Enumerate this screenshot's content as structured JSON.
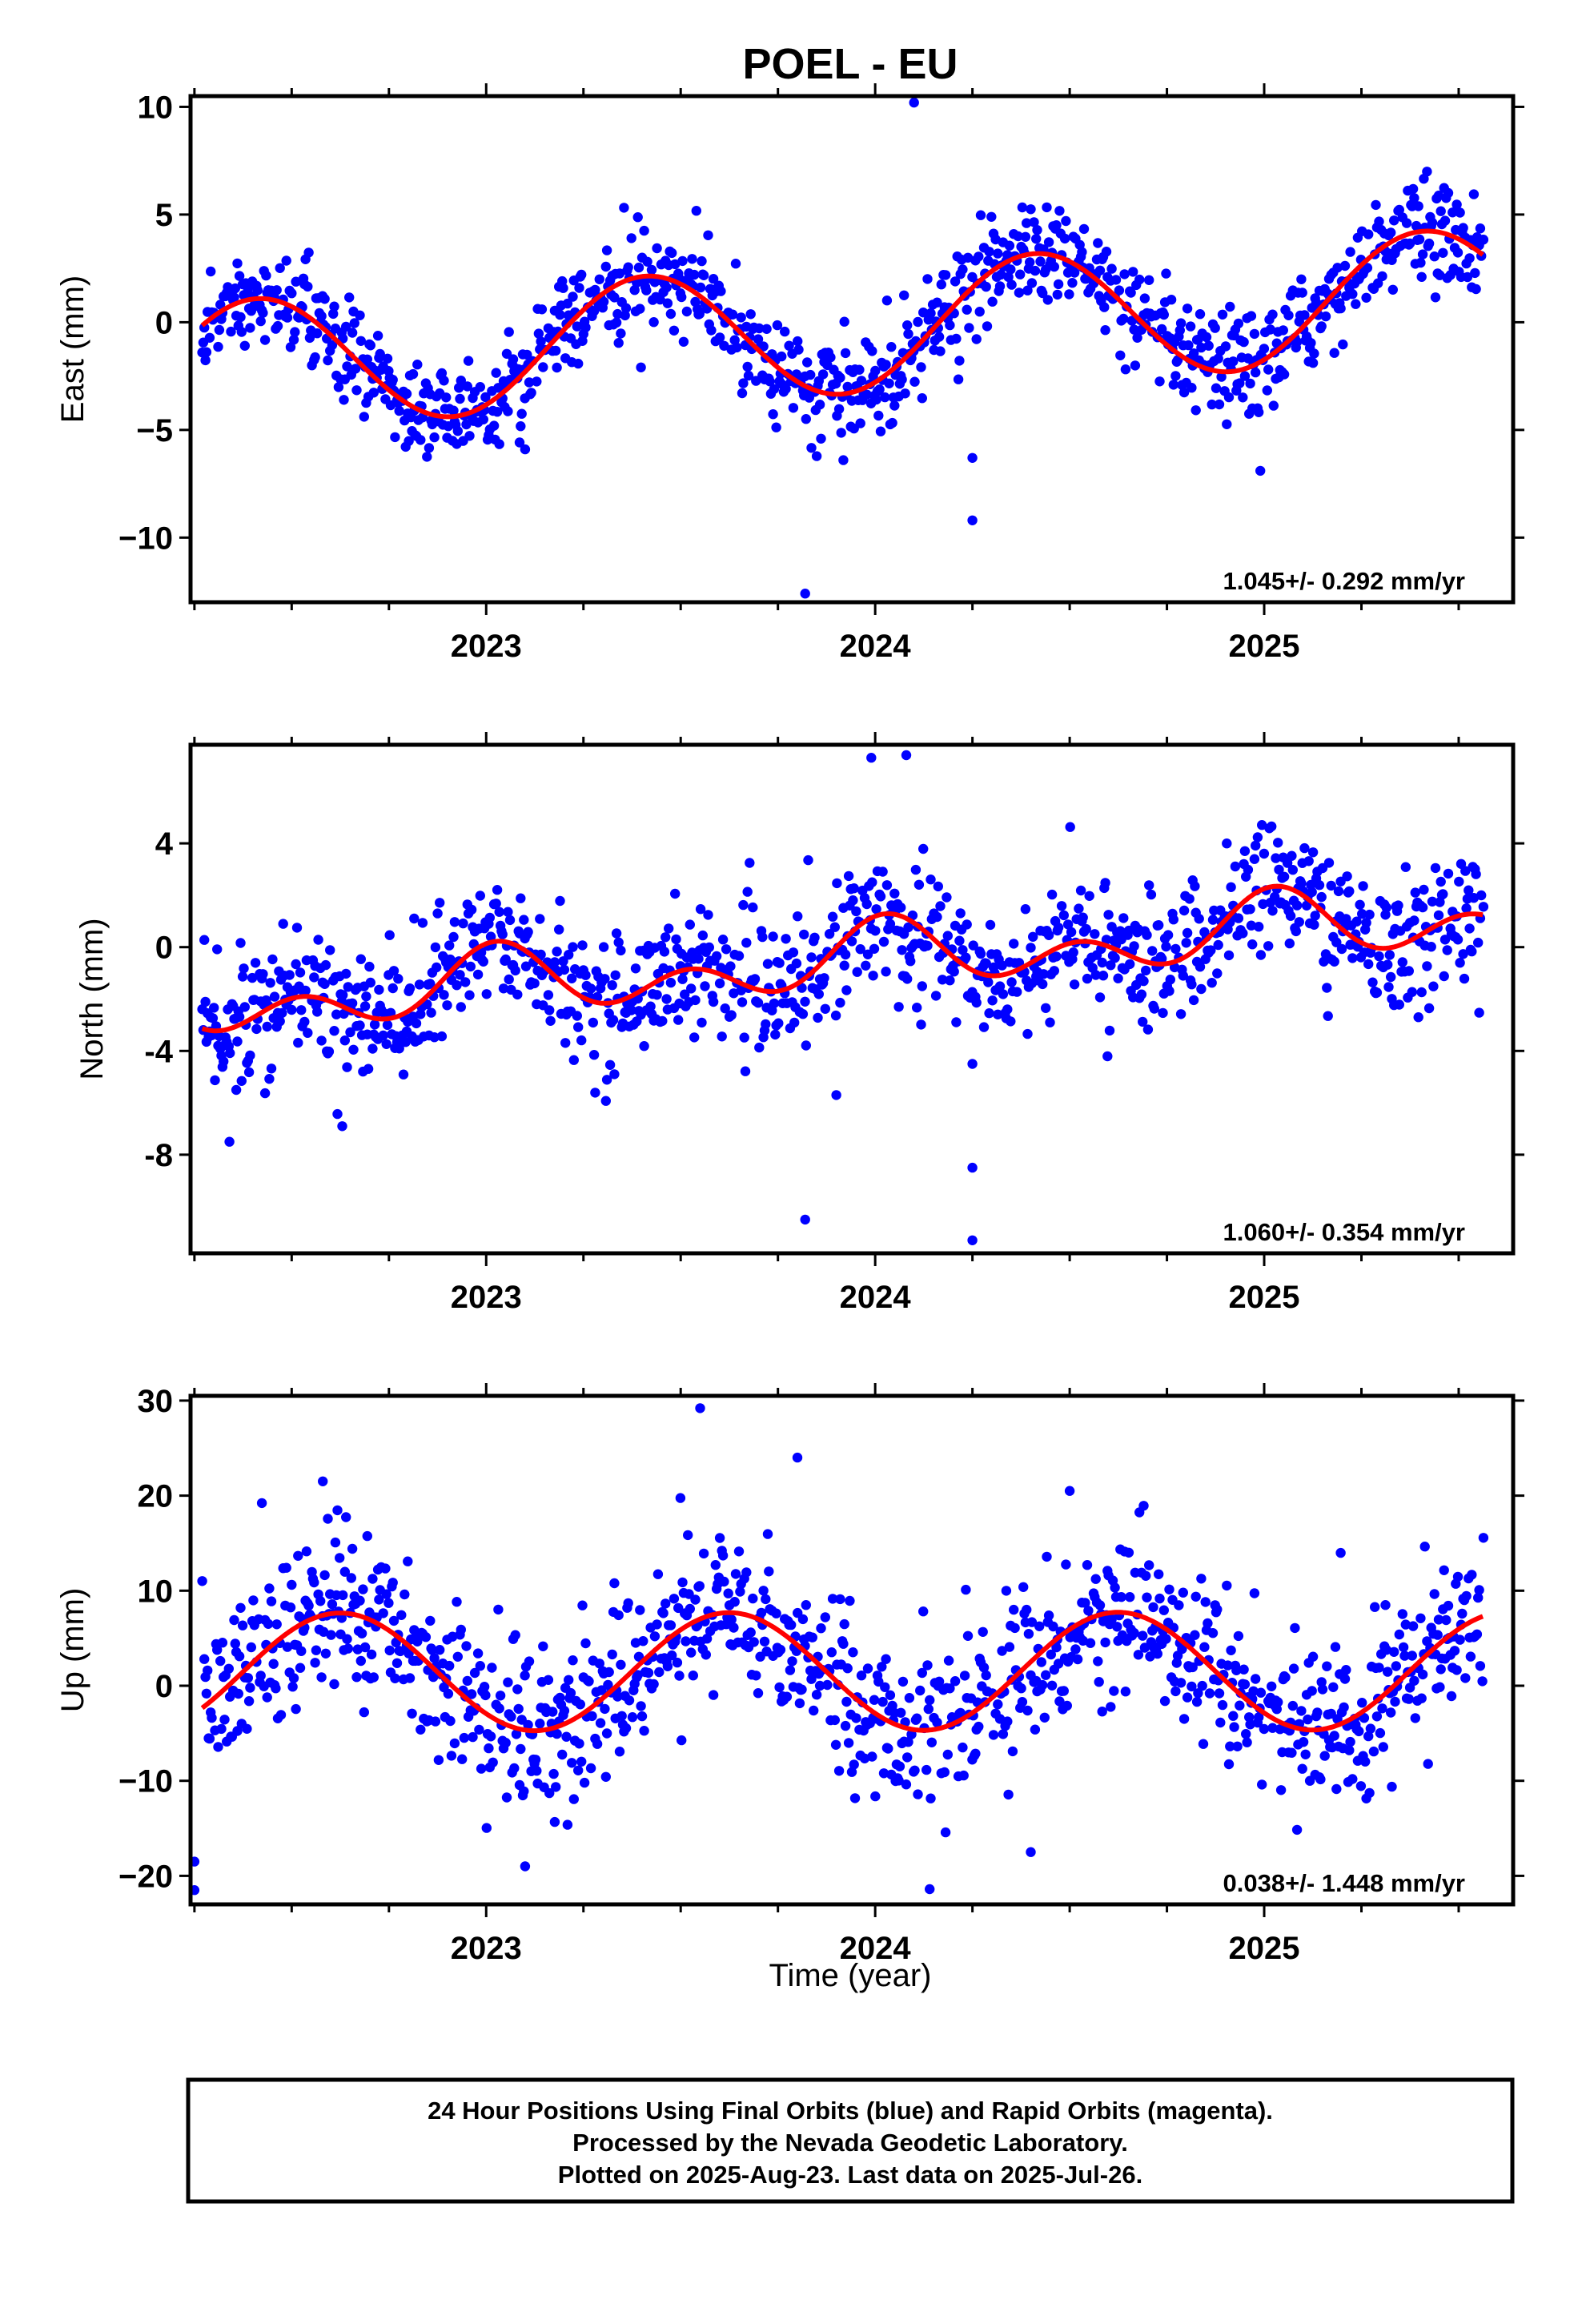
{
  "title": "POEL - EU",
  "colors": {
    "final_orbits": "#0000ff",
    "rapid_orbits": "#ff00ff",
    "model_fit": "#ff0000",
    "frame": "#000000"
  },
  "chart_data": [
    {
      "type": "scatter",
      "panel": "east",
      "ylabel": "East (mm)",
      "xlabel": "",
      "xlim": [
        2022.24,
        2025.64
      ],
      "ylim": [
        -13,
        10.5
      ],
      "yticks": [
        10,
        5,
        0,
        -5,
        -10
      ],
      "yticklabels": [
        "10",
        "5",
        "0",
        "−5",
        "−10"
      ],
      "xticks": [
        2023,
        2024,
        2025
      ],
      "xticklabels": [
        "2023",
        "2024",
        "2025"
      ],
      "annotation": "1.045+/- 0.292 mm/yr",
      "model": {
        "offset": -0.35,
        "rate": 1.045,
        "annual_amp": 3.0,
        "annual_phase_day": 150,
        "semi_amp": 0.0,
        "semi_phase_day": 0
      },
      "noise_sd": 1.15,
      "outliers": [
        [
          2023.1,
          -5.9
        ],
        [
          2023.82,
          -12.6
        ],
        [
          2024.1,
          10.2
        ],
        [
          2024.25,
          -6.3
        ],
        [
          2024.25,
          -9.2
        ],
        [
          2024.99,
          -6.9
        ]
      ]
    },
    {
      "type": "scatter",
      "panel": "north",
      "ylabel": "North (mm)",
      "xlabel": "",
      "xlim": [
        2022.24,
        2025.64
      ],
      "ylim": [
        -11.8,
        7.8
      ],
      "yticks": [
        4,
        0,
        -4,
        -8
      ],
      "yticklabels": [
        "4",
        "0",
        "-4",
        "-8"
      ],
      "xticks": [
        2023,
        2024,
        2025
      ],
      "xticklabels": [
        "2023",
        "2024",
        "2025"
      ],
      "annotation": "1.060+/- 0.354 mm/yr",
      "model": {
        "offset": -0.55,
        "rate": 1.06,
        "annual_amp": 0.8,
        "annual_phase_day": 10,
        "semi_amp": 0.9,
        "semi_phase_day": 10
      },
      "noise_sd": 1.25,
      "outliers": [
        [
          2022.34,
          -7.5
        ],
        [
          2022.63,
          -6.9
        ],
        [
          2023.82,
          -10.5
        ],
        [
          2023.9,
          -5.7
        ],
        [
          2023.99,
          7.3
        ],
        [
          2024.08,
          7.4
        ],
        [
          2024.25,
          -8.5
        ],
        [
          2024.25,
          -11.3
        ],
        [
          2024.25,
          -4.5
        ]
      ]
    },
    {
      "type": "scatter",
      "panel": "up",
      "ylabel": "Up (mm)",
      "xlabel": "Time (year)",
      "xlim": [
        2022.24,
        2025.64
      ],
      "ylim": [
        -23,
        30.5
      ],
      "yticks": [
        30,
        20,
        10,
        0,
        -10,
        -20
      ],
      "yticklabels": [
        "30",
        "20",
        "10",
        "0",
        "−10",
        "−20"
      ],
      "xticks": [
        2023,
        2024,
        2025
      ],
      "xticklabels": [
        "2023",
        "2024",
        "2025"
      ],
      "annotation": "0.038+/- 1.448 mm/yr",
      "model": {
        "offset": 1.5,
        "rate": 0.038,
        "annual_amp": 6.2,
        "annual_phase_day": 228,
        "semi_amp": 0.0,
        "semi_phase_day": 0
      },
      "noise_sd": 4.2,
      "outliers": [
        [
          2022.25,
          -21.5
        ],
        [
          2022.25,
          -18.5
        ],
        [
          2022.58,
          21.5
        ],
        [
          2023.1,
          -19.0
        ],
        [
          2023.55,
          29.2
        ],
        [
          2023.8,
          24.0
        ],
        [
          2024.14,
          -21.4
        ],
        [
          2024.4,
          -17.5
        ],
        [
          2024.5,
          20.5
        ]
      ]
    }
  ],
  "footer": {
    "line1": "24 Hour Positions Using Final Orbits (blue) and Rapid Orbits (magenta).",
    "line2": "Processed by the Nevada Geodetic Laboratory.",
    "line3": "Plotted on 2025-Aug-23. Last data on 2025-Jul-26."
  }
}
